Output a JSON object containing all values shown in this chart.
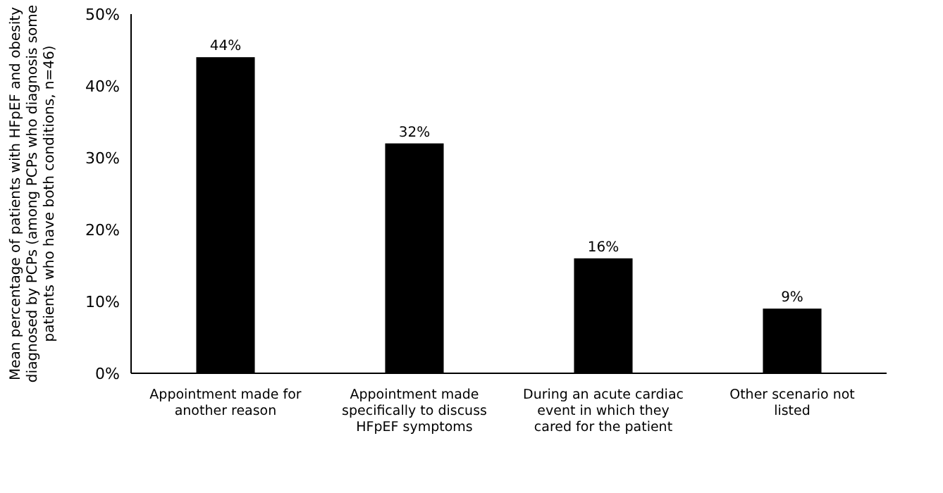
{
  "chart_data": {
    "type": "bar",
    "ylabel": "Mean percentage of patients with HFpEF and obesity diagnosed by PCPs (among PCPs who diagnosis some patients who have both conditions, n=46)",
    "categories": [
      "Appointment made for another reason",
      "Appointment made specifically to discuss HFpEF symptoms",
      "During an acute cardiac event in which they cared for the patient",
      "Other scenario not listed"
    ],
    "values": [
      44,
      32,
      16,
      9
    ],
    "color": "#000000",
    "value_labels": [
      "44%",
      "32%",
      "16%",
      "9%"
    ],
    "ylim": [
      0,
      50
    ],
    "yticks": [
      {
        "value": 0,
        "label": "0%"
      },
      {
        "value": 10,
        "label": "10%"
      },
      {
        "value": 20,
        "label": "20%"
      },
      {
        "value": 30,
        "label": "30%"
      },
      {
        "value": 40,
        "label": "40%"
      },
      {
        "value": 50,
        "label": "50%"
      }
    ],
    "grid": false
  }
}
